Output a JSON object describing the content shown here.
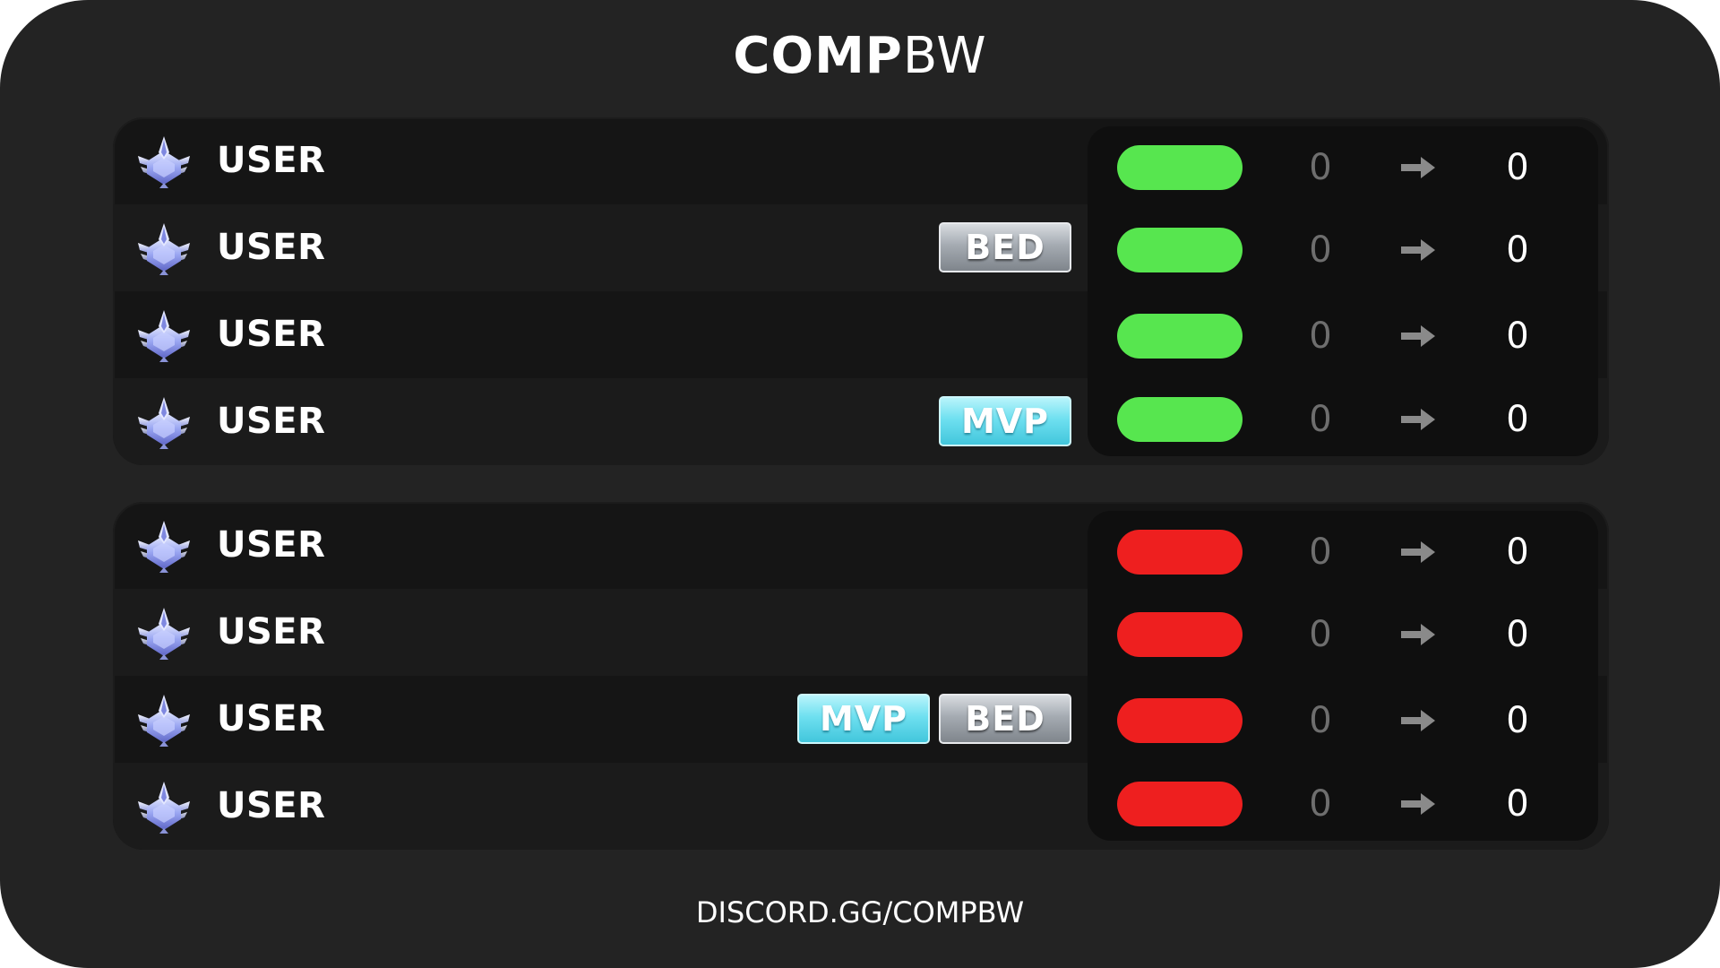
{
  "header": {
    "logo_bold": "COMP",
    "logo_light": "BW"
  },
  "footer": {
    "text": "DISCORD.GG/COMPBW"
  },
  "colors": {
    "winner_status": "#57e64f",
    "loser_status": "#ee1f1f",
    "bed_badge": "#a5abb2",
    "mvp_badge": "#6fe0f0"
  },
  "teams": [
    {
      "result": "win",
      "players": [
        {
          "name": "USER",
          "rank_icon": "rank-emblem-icon",
          "badges": [],
          "score_before": "0",
          "score_after": "0"
        },
        {
          "name": "USER",
          "rank_icon": "rank-emblem-icon",
          "badges": [
            "BED"
          ],
          "score_before": "0",
          "score_after": "0"
        },
        {
          "name": "USER",
          "rank_icon": "rank-emblem-icon",
          "badges": [],
          "score_before": "0",
          "score_after": "0"
        },
        {
          "name": "USER",
          "rank_icon": "rank-emblem-icon",
          "badges": [
            "MVP"
          ],
          "score_before": "0",
          "score_after": "0"
        }
      ]
    },
    {
      "result": "loss",
      "players": [
        {
          "name": "USER",
          "rank_icon": "rank-emblem-icon",
          "badges": [],
          "score_before": "0",
          "score_after": "0"
        },
        {
          "name": "USER",
          "rank_icon": "rank-emblem-icon",
          "badges": [],
          "score_before": "0",
          "score_after": "0"
        },
        {
          "name": "USER",
          "rank_icon": "rank-emblem-icon",
          "badges": [
            "BED",
            "MVP"
          ],
          "score_before": "0",
          "score_after": "0"
        },
        {
          "name": "USER",
          "rank_icon": "rank-emblem-icon",
          "badges": [],
          "score_before": "0",
          "score_after": "0"
        }
      ]
    }
  ]
}
